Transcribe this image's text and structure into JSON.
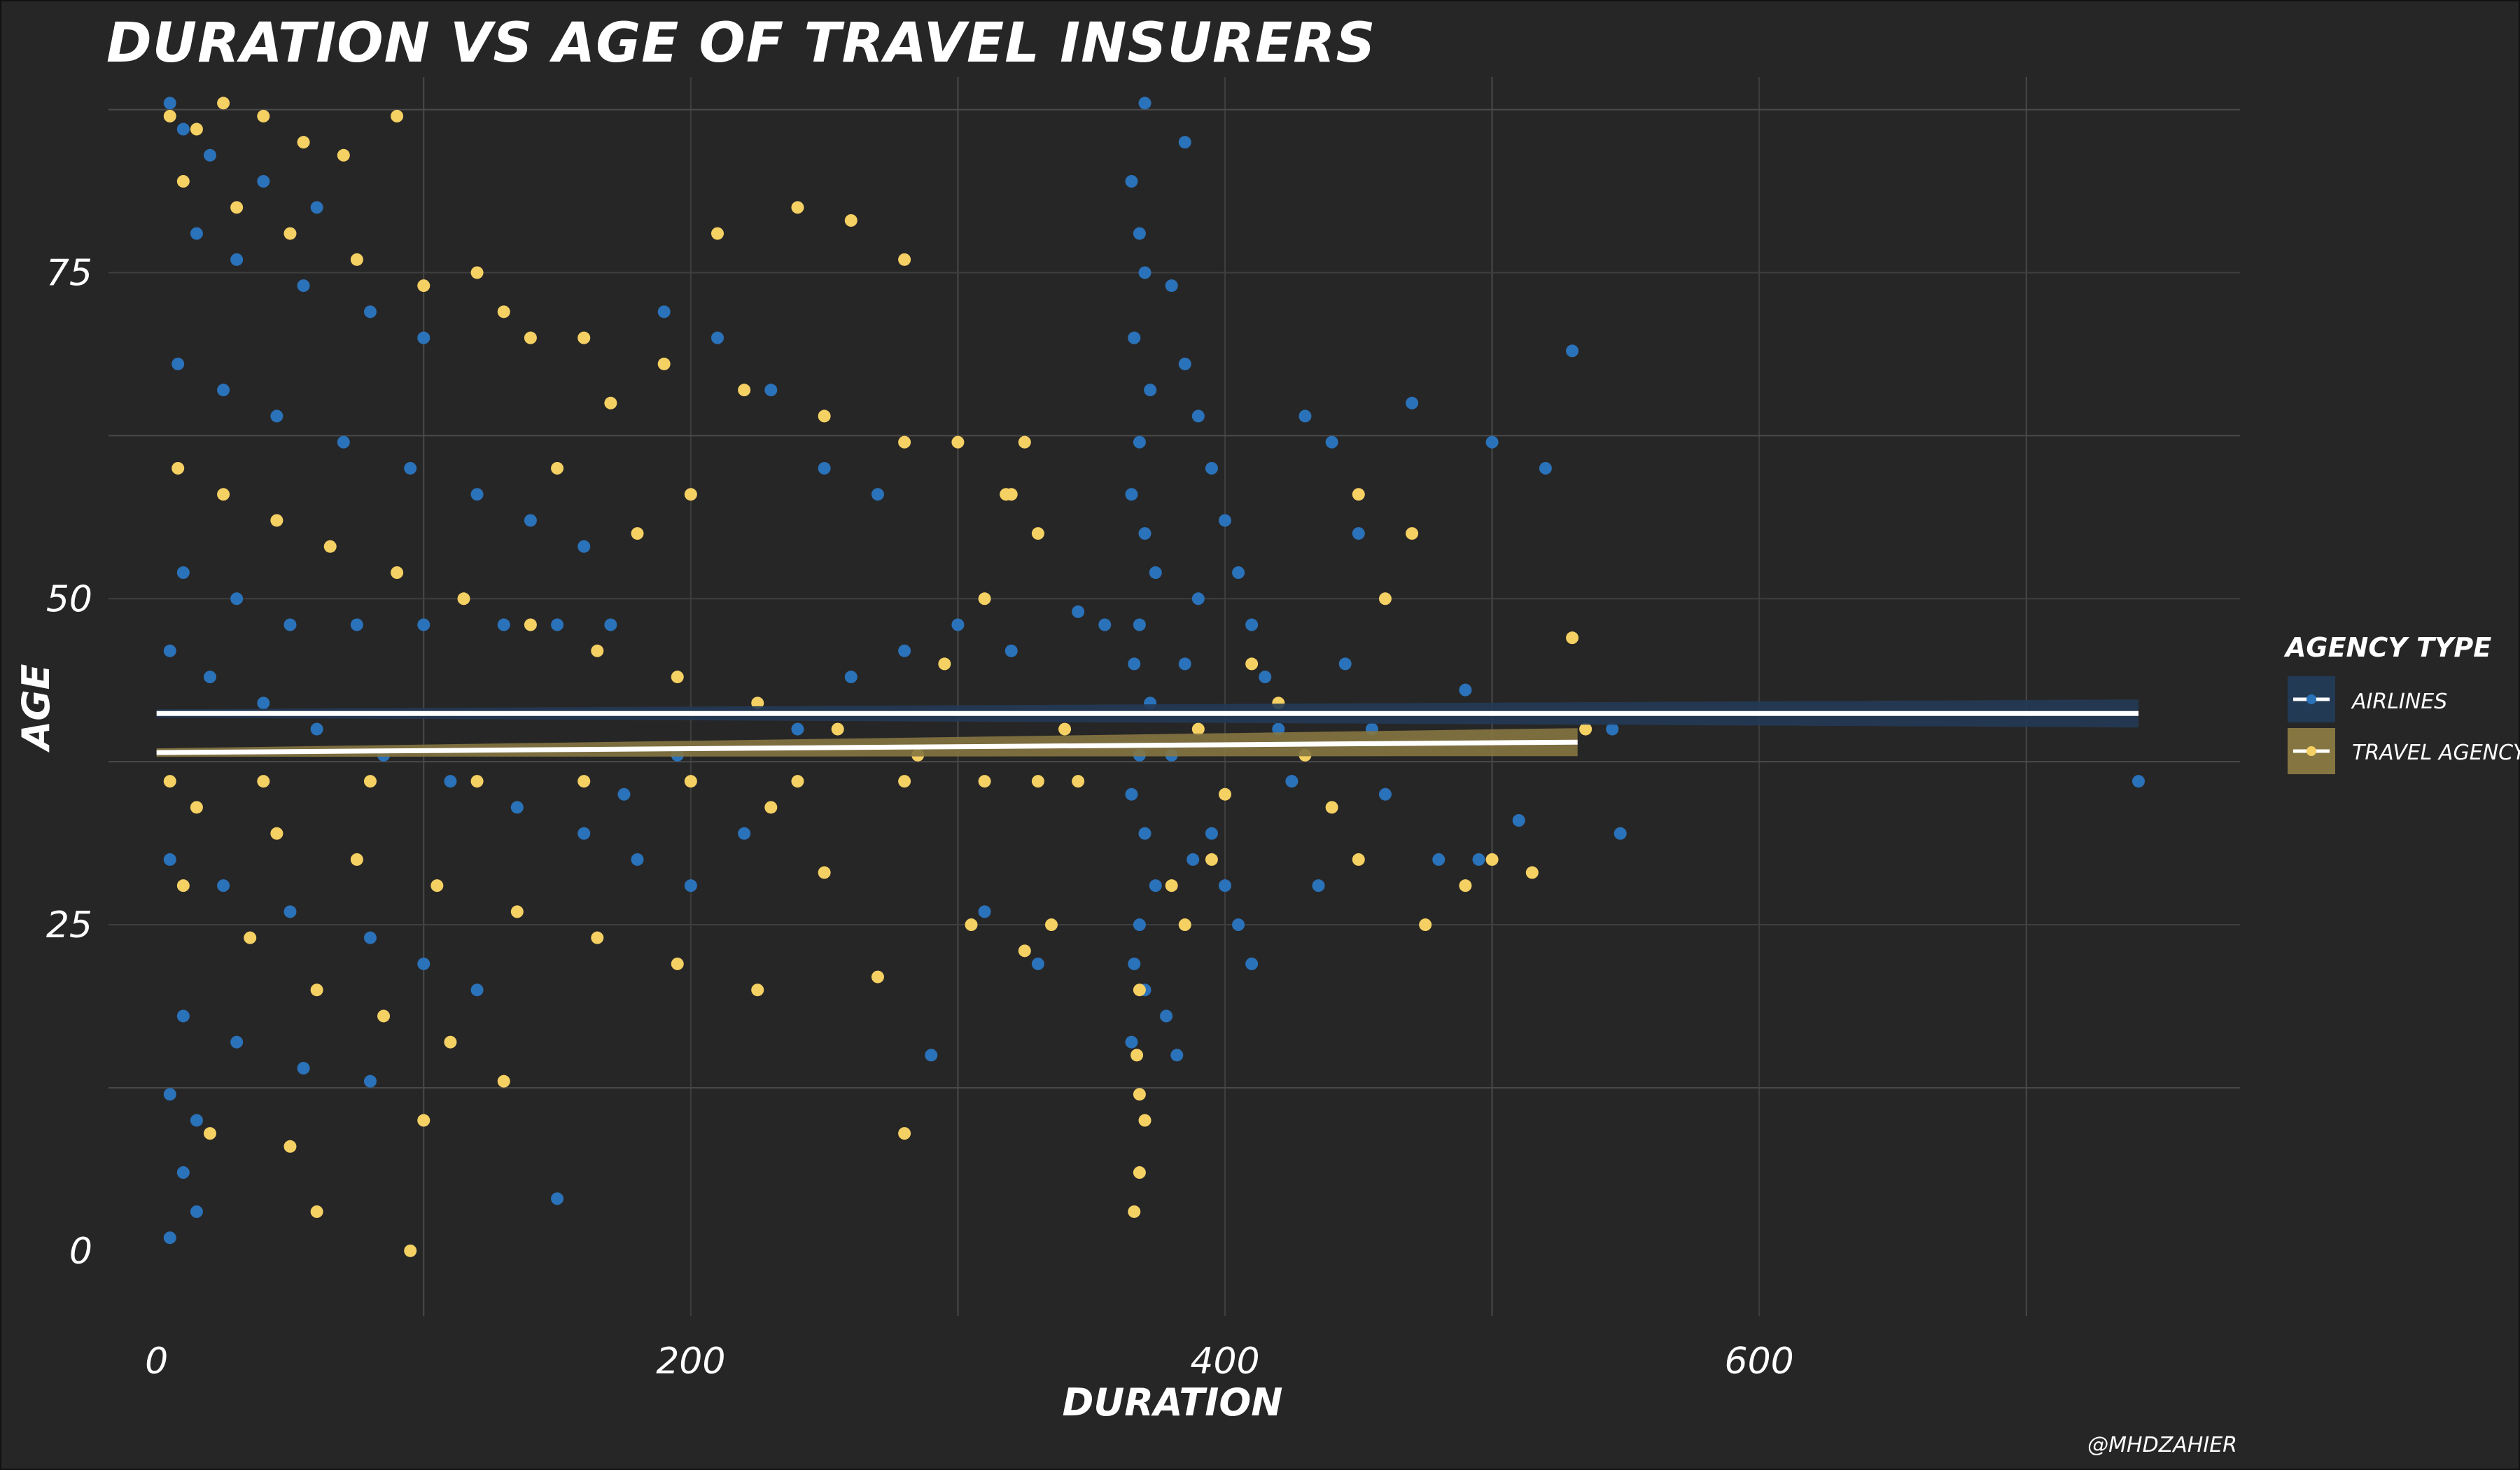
{
  "chart_data": {
    "type": "scatter",
    "title": "DURATION VS AGE OF TRAVEL INSURERS",
    "xlabel": "DURATION",
    "ylabel": "AGE",
    "xlim": [
      -18,
      780
    ],
    "ylim": [
      -5,
      90
    ],
    "x_ticks": [
      0,
      200,
      400,
      600
    ],
    "y_ticks": [
      0,
      25,
      50,
      75
    ],
    "grid": true,
    "legend": {
      "title": "AGENCY TYPE",
      "position": "right",
      "entries": [
        "AIRLINES",
        "TRAVEL AGENCY"
      ]
    },
    "caption": "@MHDZAHIER",
    "series": [
      {
        "name": "AIRLINES",
        "color": "#2a72ba",
        "trend": {
          "x": [
            0,
            742
          ],
          "y": [
            41.2,
            41.2
          ]
        },
        "points": [
          [
            5,
            88
          ],
          [
            10,
            86
          ],
          [
            20,
            84
          ],
          [
            40,
            82
          ],
          [
            60,
            80
          ],
          [
            15,
            78
          ],
          [
            30,
            76
          ],
          [
            55,
            74
          ],
          [
            80,
            72
          ],
          [
            100,
            70
          ],
          [
            8,
            68
          ],
          [
            25,
            66
          ],
          [
            45,
            64
          ],
          [
            70,
            62
          ],
          [
            95,
            60
          ],
          [
            120,
            58
          ],
          [
            140,
            56
          ],
          [
            160,
            54
          ],
          [
            10,
            52
          ],
          [
            30,
            50
          ],
          [
            50,
            48
          ],
          [
            75,
            48
          ],
          [
            100,
            48
          ],
          [
            130,
            48
          ],
          [
            150,
            48
          ],
          [
            170,
            48
          ],
          [
            5,
            46
          ],
          [
            20,
            44
          ],
          [
            40,
            42
          ],
          [
            60,
            40
          ],
          [
            85,
            38
          ],
          [
            110,
            36
          ],
          [
            135,
            34
          ],
          [
            160,
            32
          ],
          [
            5,
            30
          ],
          [
            25,
            28
          ],
          [
            50,
            26
          ],
          [
            80,
            24
          ],
          [
            100,
            22
          ],
          [
            120,
            20
          ],
          [
            10,
            18
          ],
          [
            30,
            16
          ],
          [
            55,
            14
          ],
          [
            80,
            13
          ],
          [
            5,
            12
          ],
          [
            15,
            10
          ],
          [
            10,
            6
          ],
          [
            15,
            3
          ],
          [
            5,
            1
          ],
          [
            150,
            4
          ],
          [
            180,
            30
          ],
          [
            200,
            28
          ],
          [
            220,
            32
          ],
          [
            240,
            40
          ],
          [
            260,
            44
          ],
          [
            280,
            46
          ],
          [
            300,
            48
          ],
          [
            320,
            46
          ],
          [
            345,
            49
          ],
          [
            355,
            48
          ],
          [
            250,
            60
          ],
          [
            270,
            58
          ],
          [
            210,
            70
          ],
          [
            230,
            66
          ],
          [
            190,
            72
          ],
          [
            175,
            35
          ],
          [
            195,
            38
          ],
          [
            290,
            15
          ],
          [
            330,
            22
          ],
          [
            310,
            26
          ],
          [
            365,
            82
          ],
          [
            368,
            78
          ],
          [
            370,
            75
          ],
          [
            366,
            70
          ],
          [
            372,
            66
          ],
          [
            368,
            62
          ],
          [
            365,
            58
          ],
          [
            370,
            55
          ],
          [
            374,
            52
          ],
          [
            368,
            48
          ],
          [
            366,
            45
          ],
          [
            372,
            42
          ],
          [
            368,
            38
          ],
          [
            365,
            35
          ],
          [
            370,
            32
          ],
          [
            374,
            28
          ],
          [
            368,
            25
          ],
          [
            366,
            22
          ],
          [
            370,
            20
          ],
          [
            365,
            16
          ],
          [
            380,
            74
          ],
          [
            385,
            68
          ],
          [
            390,
            64
          ],
          [
            395,
            60
          ],
          [
            400,
            56
          ],
          [
            405,
            52
          ],
          [
            410,
            48
          ],
          [
            415,
            44
          ],
          [
            420,
            40
          ],
          [
            425,
            36
          ],
          [
            395,
            32
          ],
          [
            400,
            28
          ],
          [
            405,
            25
          ],
          [
            410,
            22
          ],
          [
            385,
            45
          ],
          [
            390,
            50
          ],
          [
            380,
            38
          ],
          [
            388,
            30
          ],
          [
            378,
            18
          ],
          [
            382,
            15
          ],
          [
            430,
            64
          ],
          [
            440,
            62
          ],
          [
            450,
            55
          ],
          [
            445,
            45
          ],
          [
            455,
            40
          ],
          [
            460,
            35
          ],
          [
            435,
            28
          ],
          [
            470,
            65
          ],
          [
            480,
            30
          ],
          [
            490,
            43
          ],
          [
            495,
            30
          ],
          [
            500,
            62
          ],
          [
            510,
            33
          ],
          [
            520,
            60
          ],
          [
            530,
            69
          ],
          [
            545,
            40
          ],
          [
            548,
            32
          ],
          [
            742,
            36
          ],
          [
            370,
            88
          ],
          [
            385,
            85
          ]
        ]
      },
      {
        "name": "TRAVEL AGENCY",
        "color": "#f5d063",
        "trend": {
          "x": [
            0,
            532
          ],
          "y": [
            38.2,
            39
          ]
        },
        "points": [
          [
            5,
            87
          ],
          [
            15,
            86
          ],
          [
            25,
            88
          ],
          [
            40,
            87
          ],
          [
            55,
            85
          ],
          [
            70,
            84
          ],
          [
            90,
            87
          ],
          [
            10,
            82
          ],
          [
            30,
            80
          ],
          [
            50,
            78
          ],
          [
            75,
            76
          ],
          [
            100,
            74
          ],
          [
            130,
            72
          ],
          [
            160,
            70
          ],
          [
            190,
            68
          ],
          [
            220,
            66
          ],
          [
            250,
            64
          ],
          [
            280,
            62
          ],
          [
            8,
            60
          ],
          [
            25,
            58
          ],
          [
            45,
            56
          ],
          [
            65,
            54
          ],
          [
            90,
            52
          ],
          [
            115,
            50
          ],
          [
            140,
            48
          ],
          [
            165,
            46
          ],
          [
            195,
            44
          ],
          [
            225,
            42
          ],
          [
            255,
            40
          ],
          [
            285,
            38
          ],
          [
            5,
            36
          ],
          [
            40,
            36
          ],
          [
            80,
            36
          ],
          [
            120,
            36
          ],
          [
            160,
            36
          ],
          [
            200,
            36
          ],
          [
            240,
            36
          ],
          [
            280,
            36
          ],
          [
            310,
            36
          ],
          [
            330,
            36
          ],
          [
            15,
            34
          ],
          [
            45,
            32
          ],
          [
            75,
            30
          ],
          [
            105,
            28
          ],
          [
            135,
            26
          ],
          [
            165,
            24
          ],
          [
            195,
            22
          ],
          [
            225,
            20
          ],
          [
            10,
            28
          ],
          [
            35,
            24
          ],
          [
            60,
            20
          ],
          [
            85,
            18
          ],
          [
            110,
            16
          ],
          [
            130,
            13
          ],
          [
            100,
            10
          ],
          [
            50,
            8
          ],
          [
            20,
            9
          ],
          [
            60,
            3
          ],
          [
            95,
            0
          ],
          [
            280,
            9
          ],
          [
            210,
            78
          ],
          [
            240,
            80
          ],
          [
            260,
            79
          ],
          [
            280,
            76
          ],
          [
            300,
            62
          ],
          [
            320,
            58
          ],
          [
            330,
            55
          ],
          [
            310,
            50
          ],
          [
            295,
            45
          ],
          [
            305,
            25
          ],
          [
            325,
            23
          ],
          [
            270,
            21
          ],
          [
            250,
            29
          ],
          [
            230,
            34
          ],
          [
            180,
            55
          ],
          [
            200,
            58
          ],
          [
            150,
            60
          ],
          [
            170,
            65
          ],
          [
            140,
            70
          ],
          [
            120,
            75
          ],
          [
            368,
            20
          ],
          [
            367,
            15
          ],
          [
            368,
            12
          ],
          [
            370,
            10
          ],
          [
            368,
            6
          ],
          [
            366,
            3
          ],
          [
            380,
            28
          ],
          [
            385,
            25
          ],
          [
            395,
            30
          ],
          [
            400,
            35
          ],
          [
            420,
            42
          ],
          [
            430,
            38
          ],
          [
            440,
            34
          ],
          [
            450,
            30
          ],
          [
            460,
            50
          ],
          [
            470,
            55
          ],
          [
            475,
            25
          ],
          [
            490,
            28
          ],
          [
            500,
            30
          ],
          [
            515,
            29
          ],
          [
            530,
            47
          ],
          [
            535,
            40
          ],
          [
            450,
            58
          ],
          [
            410,
            45
          ],
          [
            390,
            40
          ],
          [
            340,
            40
          ],
          [
            345,
            36
          ],
          [
            335,
            25
          ],
          [
            325,
            62
          ],
          [
            318,
            58
          ]
        ]
      }
    ]
  }
}
